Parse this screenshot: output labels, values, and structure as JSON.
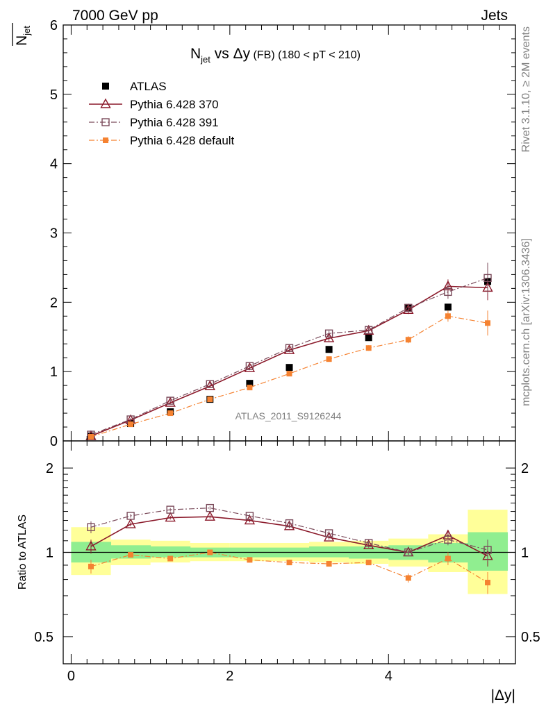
{
  "header": {
    "left": "7000 GeV pp",
    "right": "Jets",
    "side_top": "Rivet 3.1.10, ≥ 2M events",
    "side_bottom": "mcplots.cern.ch [arXiv:1306.3436]"
  },
  "chart_data": [
    {
      "type": "scatter",
      "panel": "main",
      "title_main": "N",
      "title_sub": "jet",
      "title_rest": " vs Δy",
      "title_fb": " (FB)",
      "title_cut": " (180 < pT < 210)",
      "ylabel": "N̅jet",
      "ylabel_main": "N",
      "ylabel_sub": "jet",
      "xlim": [
        -0.1,
        5.6
      ],
      "ylim": [
        0,
        6
      ],
      "yticks": [
        "0",
        "1",
        "2",
        "3",
        "4",
        "5",
        "6"
      ],
      "watermark": "ATLAS_2011_S9126244",
      "x": [
        0.25,
        0.75,
        1.25,
        1.75,
        2.25,
        2.75,
        3.25,
        3.75,
        4.25,
        4.75,
        5.25
      ],
      "series": [
        {
          "name": "ATLAS",
          "marker": "square-filled",
          "color": "#000000",
          "values": [
            0.07,
            0.25,
            0.42,
            0.6,
            0.83,
            1.06,
            1.32,
            1.49,
            1.92,
            1.93,
            2.3
          ],
          "errors": [
            0,
            0,
            0,
            0,
            0,
            0,
            0,
            0,
            0,
            0,
            0
          ]
        },
        {
          "name": "Pythia 6.428 370",
          "marker": "triangle-open",
          "color": "#8b1a2b",
          "line": "solid",
          "values": [
            0.07,
            0.3,
            0.55,
            0.79,
            1.05,
            1.31,
            1.48,
            1.59,
            1.89,
            2.23,
            2.21
          ],
          "errors": [
            0.01,
            0.02,
            0.02,
            0.02,
            0.03,
            0.03,
            0.04,
            0.05,
            0.06,
            0.1,
            0.18
          ]
        },
        {
          "name": "Pythia 6.428 391",
          "marker": "square-open",
          "color": "#7a4a5a",
          "line": "dashdot",
          "values": [
            0.09,
            0.31,
            0.58,
            0.82,
            1.08,
            1.34,
            1.55,
            1.6,
            1.92,
            2.15,
            2.35
          ],
          "errors": [
            0.01,
            0.02,
            0.02,
            0.02,
            0.03,
            0.03,
            0.04,
            0.05,
            0.06,
            0.1,
            0.22
          ]
        },
        {
          "name": "Pythia 6.428 default",
          "marker": "square-small-filled",
          "color": "#f58231",
          "line": "dashdot",
          "values": [
            0.06,
            0.24,
            0.4,
            0.6,
            0.77,
            0.97,
            1.18,
            1.34,
            1.46,
            1.8,
            1.7
          ],
          "errors": [
            0.01,
            0.02,
            0.02,
            0.02,
            0.02,
            0.03,
            0.03,
            0.04,
            0.05,
            0.08,
            0.18
          ]
        }
      ]
    },
    {
      "type": "scatter",
      "panel": "ratio",
      "ylabel": "Ratio to ATLAS",
      "xlabel": "|Δy|",
      "scale": "log",
      "xlim": [
        -0.1,
        5.6
      ],
      "ylim": [
        0.4,
        2.5
      ],
      "yticks": [
        0.5,
        1,
        2
      ],
      "ytick_labels": [
        "0.5",
        "1",
        "2"
      ],
      "xticks": [
        0,
        2,
        4
      ],
      "xtick_labels": [
        "0",
        "2",
        "4"
      ],
      "bands": {
        "edges": [
          0,
          0.5,
          1,
          1.5,
          2,
          2.5,
          3,
          3.5,
          4,
          4.5,
          5,
          5.5
        ],
        "yellow": [
          [
            0.83,
            1.23
          ],
          [
            0.9,
            1.11
          ],
          [
            0.92,
            1.1
          ],
          [
            0.93,
            1.08
          ],
          [
            0.93,
            1.08
          ],
          [
            0.93,
            1.08
          ],
          [
            0.92,
            1.09
          ],
          [
            0.91,
            1.1
          ],
          [
            0.89,
            1.12
          ],
          [
            0.85,
            1.16
          ],
          [
            0.71,
            1.42
          ]
        ],
        "green": [
          [
            0.92,
            1.09
          ],
          [
            0.95,
            1.06
          ],
          [
            0.96,
            1.05
          ],
          [
            0.96,
            1.04
          ],
          [
            0.96,
            1.04
          ],
          [
            0.96,
            1.04
          ],
          [
            0.96,
            1.05
          ],
          [
            0.95,
            1.05
          ],
          [
            0.94,
            1.06
          ],
          [
            0.92,
            1.08
          ],
          [
            0.86,
            1.18
          ]
        ]
      },
      "series": [
        {
          "name": "Pythia 6.428 370",
          "marker": "triangle-open",
          "color": "#8b1a2b",
          "line": "solid",
          "values": [
            1.05,
            1.26,
            1.33,
            1.34,
            1.3,
            1.24,
            1.13,
            1.06,
            1.0,
            1.15,
            0.97
          ],
          "errors": [
            0.06,
            0.02,
            0.02,
            0.02,
            0.02,
            0.02,
            0.02,
            0.02,
            0.02,
            0.05,
            0.08
          ]
        },
        {
          "name": "Pythia 6.428 391",
          "marker": "square-open",
          "color": "#7a4a5a",
          "line": "dashdot",
          "values": [
            1.23,
            1.35,
            1.42,
            1.44,
            1.35,
            1.27,
            1.17,
            1.08,
            1.0,
            1.11,
            1.02
          ],
          "errors": [
            0.06,
            0.02,
            0.02,
            0.02,
            0.02,
            0.02,
            0.02,
            0.02,
            0.02,
            0.05,
            0.09
          ]
        },
        {
          "name": "Pythia 6.428 default",
          "marker": "square-small-filled",
          "color": "#f58231",
          "line": "dashdot",
          "values": [
            0.89,
            0.98,
            0.95,
            1.0,
            0.94,
            0.92,
            0.91,
            0.92,
            0.81,
            0.95,
            0.78
          ],
          "errors": [
            0.05,
            0.02,
            0.02,
            0.02,
            0.02,
            0.02,
            0.02,
            0.02,
            0.03,
            0.05,
            0.07
          ]
        }
      ]
    }
  ]
}
